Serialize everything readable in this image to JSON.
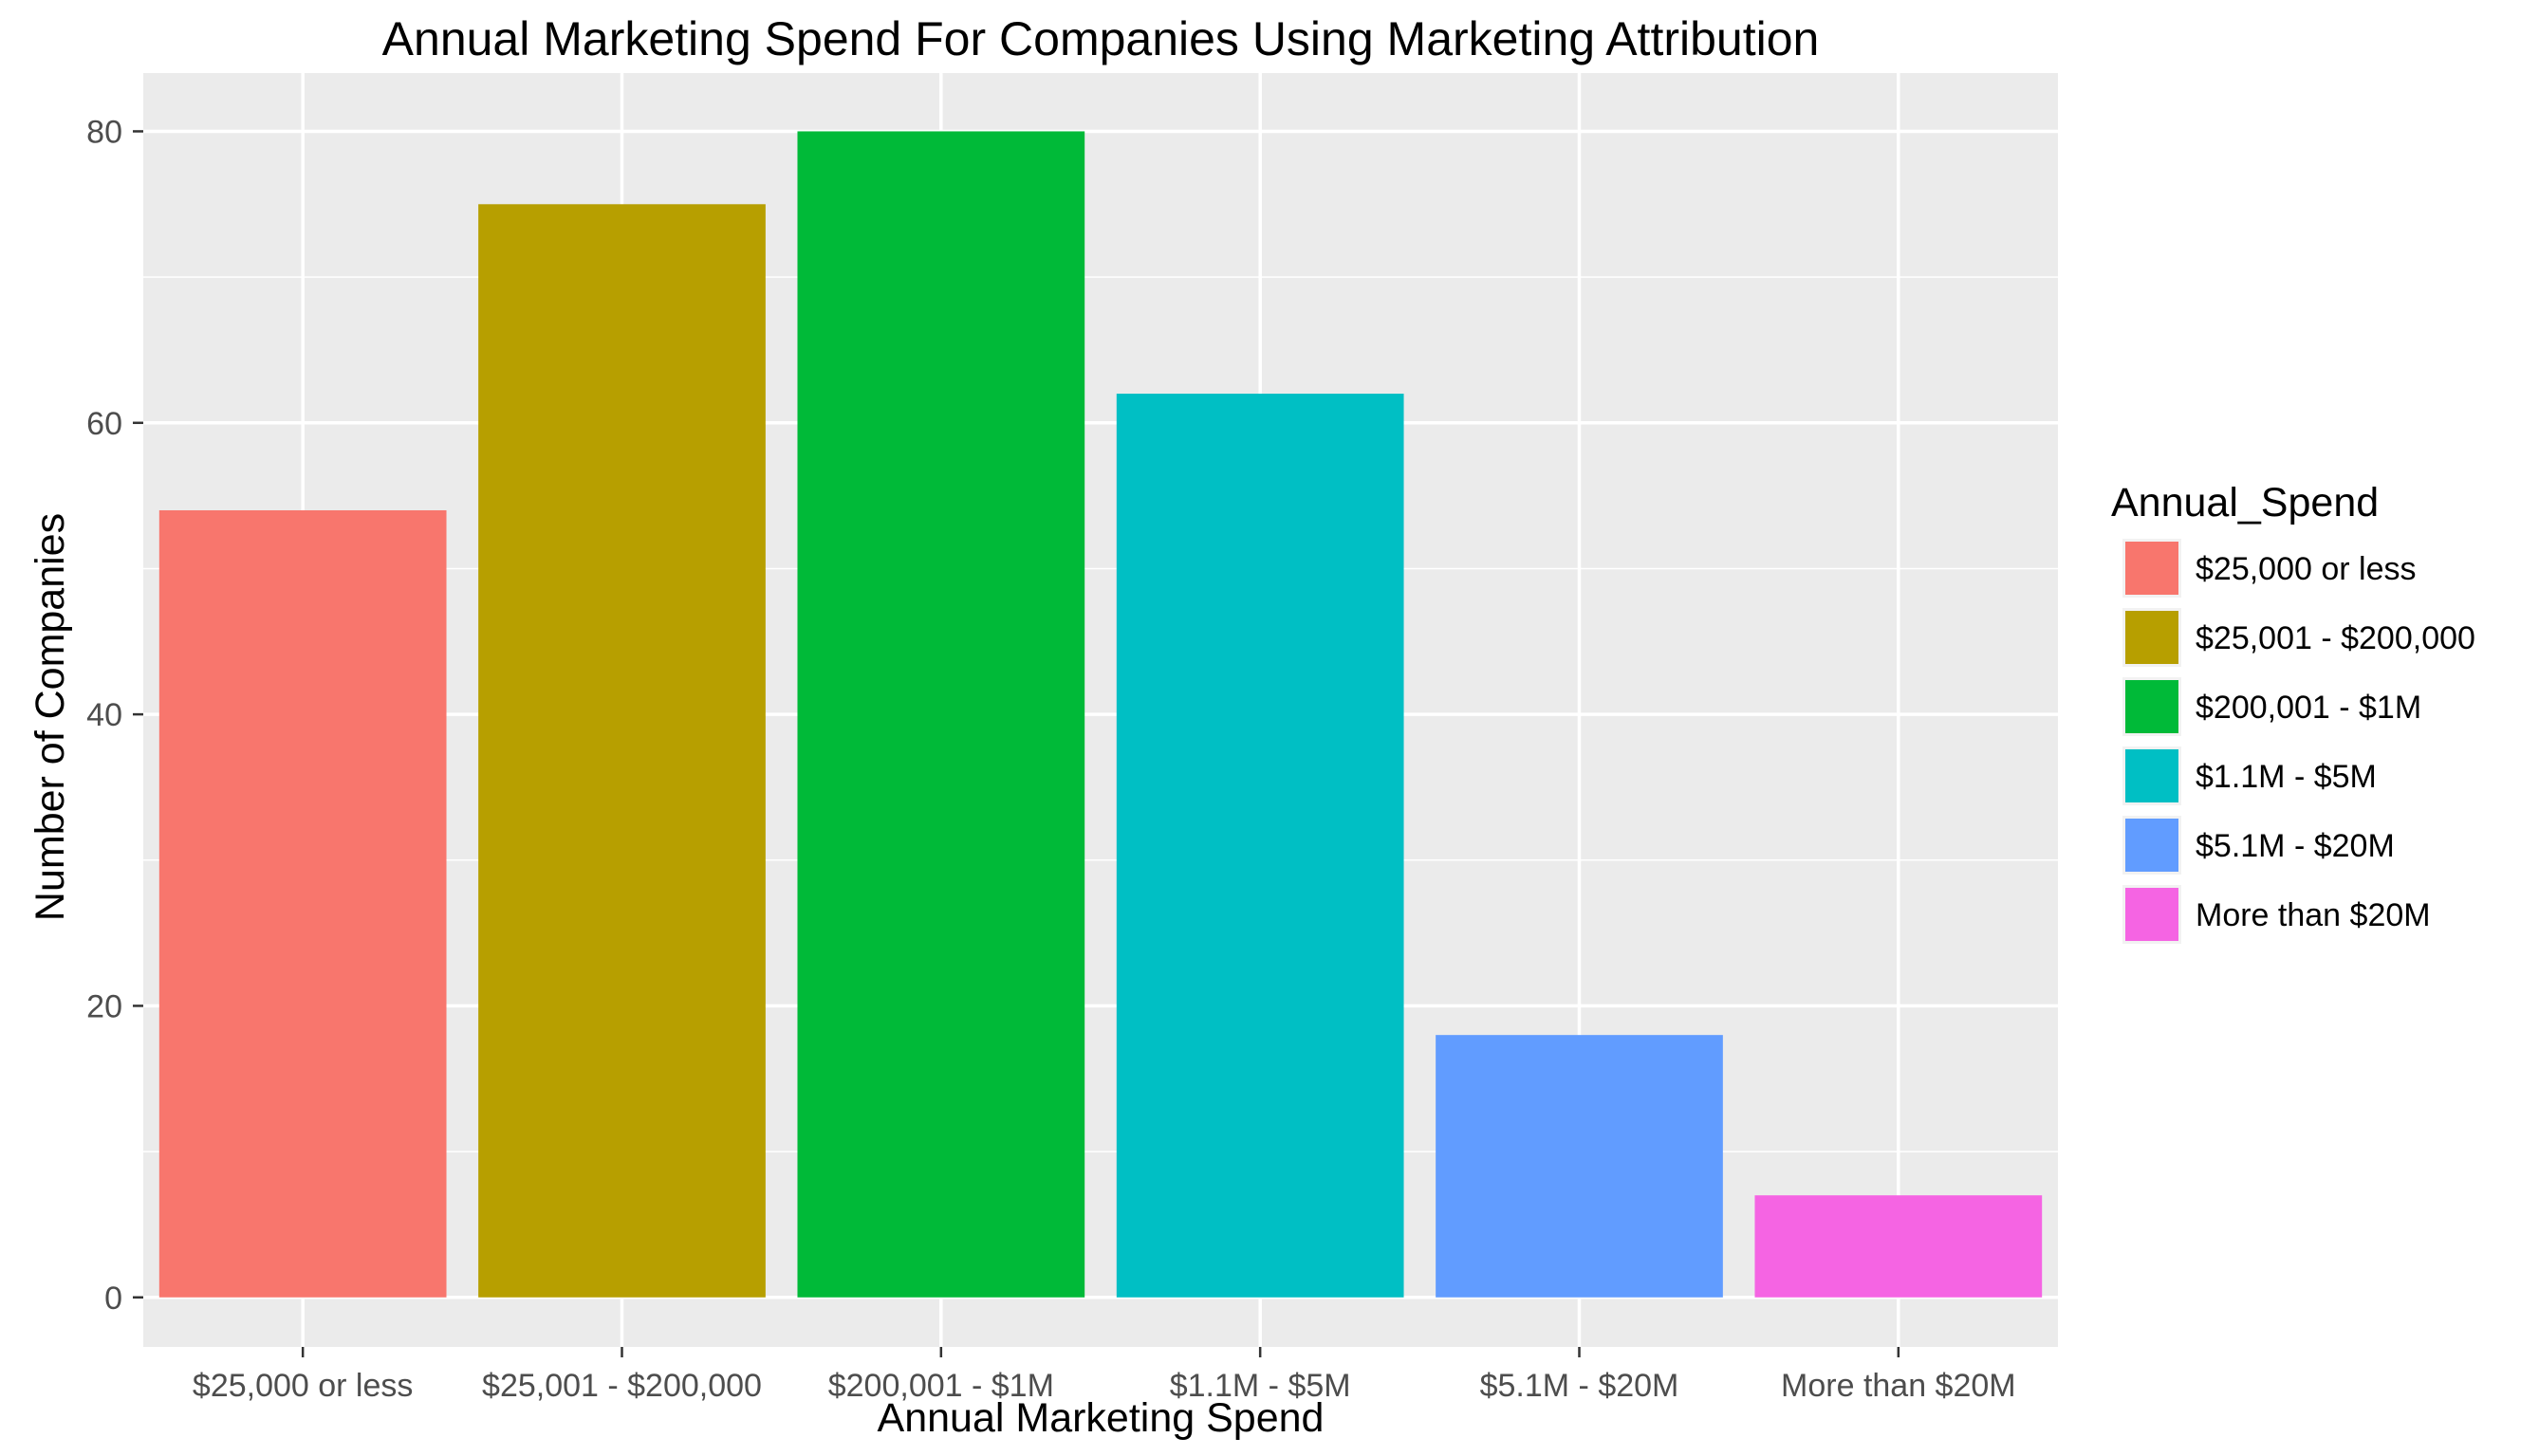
{
  "chart_data": {
    "type": "bar",
    "title": "Annual Marketing Spend For Companies Using Marketing Attribution",
    "xlabel": "Annual Marketing Spend",
    "ylabel": "Number of Companies",
    "categories": [
      "$25,000 or less",
      "$25,001 - $200,000",
      "$200,001 - $1M",
      "$1.1M - $5M",
      "$5.1M - $20M",
      "More than $20M"
    ],
    "values": [
      54,
      75,
      80,
      62,
      18,
      7
    ],
    "colors": [
      "#F8766D",
      "#B79F00",
      "#00BA38",
      "#00BFC4",
      "#619CFF",
      "#F564E3"
    ],
    "ylim": [
      -3.4,
      84
    ],
    "yticks": [
      0,
      20,
      40,
      60,
      80
    ],
    "grid": true,
    "panel_background": "#EBEBEB",
    "grid_color": "#FFFFFF",
    "legend": {
      "title": "Annual_Spend",
      "position": "right",
      "entries": [
        "$25,000 or less",
        "$25,001 - $200,000",
        "$200,001 - $1M",
        "$1.1M - $5M",
        "$5.1M - $20M",
        "More than $20M"
      ]
    }
  }
}
